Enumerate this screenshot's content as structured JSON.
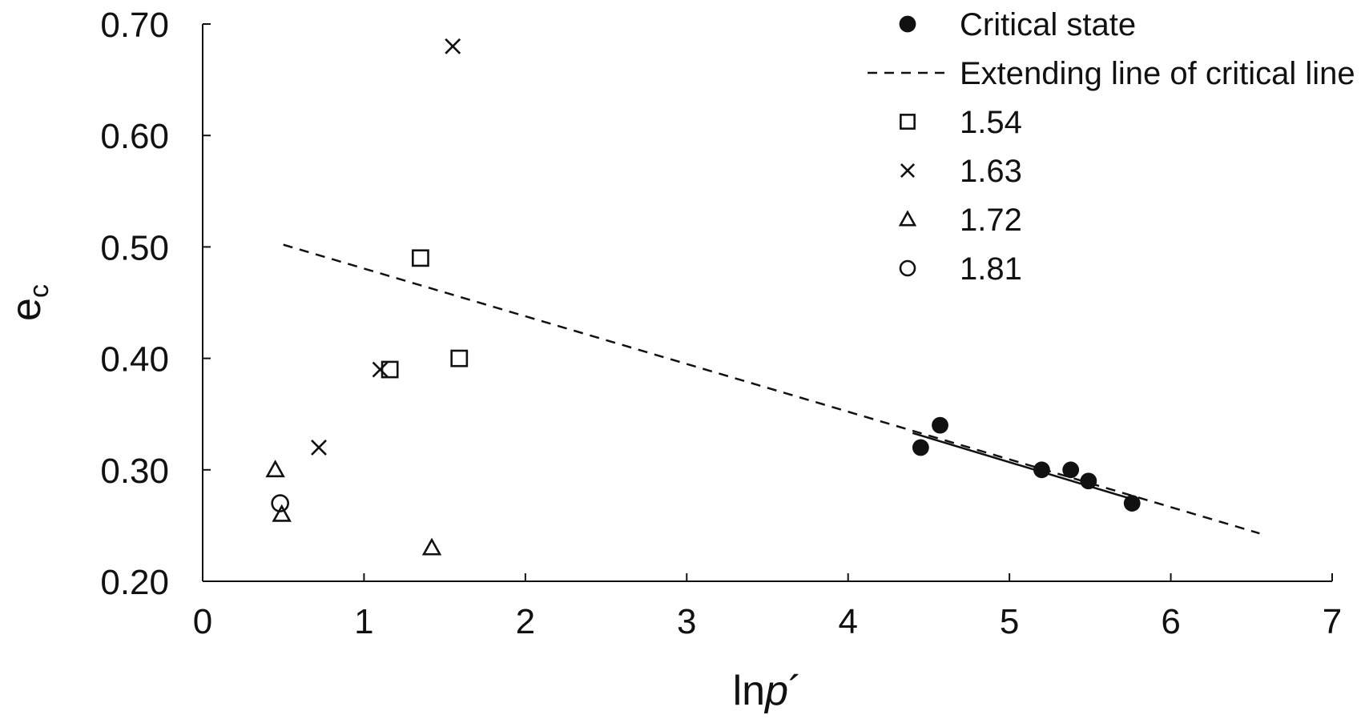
{
  "chart_data": {
    "type": "scatter",
    "xlabel": "lnp´",
    "xlabel_parts": {
      "pre": "ln",
      "italic": "p",
      "post": "´"
    },
    "ylabel": "ec",
    "ylabel_parts": {
      "base": "e",
      "sub": "c"
    },
    "xlim": [
      0,
      7
    ],
    "ylim": [
      0.2,
      0.7
    ],
    "xticks": [
      "0",
      "1",
      "2",
      "3",
      "4",
      "5",
      "6",
      "7"
    ],
    "yticks": [
      "0.20",
      "0.30",
      "0.40",
      "0.50",
      "0.60",
      "0.70"
    ],
    "grid": false,
    "legend_position": "top-right",
    "series": [
      {
        "name": "Critical state",
        "marker": "filled-circle",
        "points": [
          [
            4.45,
            0.32
          ],
          [
            4.57,
            0.34
          ],
          [
            5.2,
            0.3
          ],
          [
            5.38,
            0.3
          ],
          [
            5.49,
            0.29
          ],
          [
            5.76,
            0.27
          ]
        ]
      },
      {
        "name": "1.54",
        "marker": "square",
        "points": [
          [
            1.35,
            0.49
          ],
          [
            1.16,
            0.39
          ],
          [
            1.59,
            0.4
          ]
        ]
      },
      {
        "name": "1.63",
        "marker": "cross",
        "points": [
          [
            1.55,
            0.68
          ],
          [
            1.1,
            0.39
          ],
          [
            0.72,
            0.32
          ]
        ]
      },
      {
        "name": "1.72",
        "marker": "triangle",
        "points": [
          [
            0.45,
            0.3
          ],
          [
            0.49,
            0.26
          ],
          [
            1.42,
            0.23
          ]
        ]
      },
      {
        "name": "1.81",
        "marker": "open-circle",
        "points": [
          [
            0.48,
            0.27
          ]
        ]
      }
    ],
    "lines": [
      {
        "name": "Extending line of critical line",
        "style": "dashed",
        "points": [
          [
            0.5,
            0.502
          ],
          [
            6.55,
            0.243
          ]
        ]
      },
      {
        "name": "critical line",
        "style": "solid",
        "points": [
          [
            4.4,
            0.333
          ],
          [
            5.8,
            0.272
          ]
        ]
      }
    ],
    "legend": [
      {
        "label": "Critical state",
        "marker": "filled-circle"
      },
      {
        "label": "Extending line of critical line",
        "marker": "dashed-line"
      },
      {
        "label": "1.54",
        "marker": "square"
      },
      {
        "label": "1.63",
        "marker": "cross"
      },
      {
        "label": "1.72",
        "marker": "triangle"
      },
      {
        "label": "1.81",
        "marker": "open-circle"
      }
    ]
  }
}
